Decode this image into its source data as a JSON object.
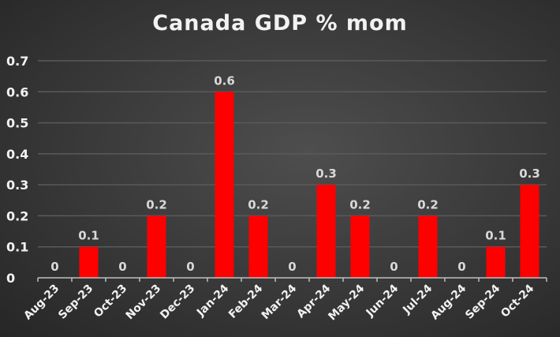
{
  "chart_data": {
    "type": "bar",
    "title": "Canada GDP % mom",
    "xlabel": "",
    "ylabel": "",
    "categories": [
      "Aug-23",
      "Sep-23",
      "Oct-23",
      "Nov-23",
      "Dec-23",
      "Jan-24",
      "Feb-24",
      "Mar-24",
      "Apr-24",
      "May-24",
      "Jun-24",
      "Jul-24",
      "Aug-24",
      "Sep-24",
      "Oct-24"
    ],
    "values": [
      0,
      0.1,
      0,
      0.2,
      0,
      0.6,
      0.2,
      0,
      0.3,
      0.2,
      0,
      0.2,
      0,
      0.1,
      0.3
    ],
    "data_labels": [
      "0",
      "0.1",
      "0",
      "0.2",
      "0",
      "0.6",
      "0.2",
      "0",
      "0.3",
      "0.2",
      "0",
      "0.2",
      "0",
      "0.1",
      "0.3"
    ],
    "ylim": [
      0,
      0.7
    ],
    "yticks": [
      "0",
      "0.1",
      "0.2",
      "0.3",
      "0.4",
      "0.5",
      "0.6",
      "0.7"
    ],
    "grid": true,
    "legend": "none",
    "colors": {
      "bar": "#ff0000",
      "text": "#f2f2f2",
      "label": "#d9d9d9",
      "grid": "#5a5a5a",
      "axis": "#bfbfbf"
    }
  }
}
